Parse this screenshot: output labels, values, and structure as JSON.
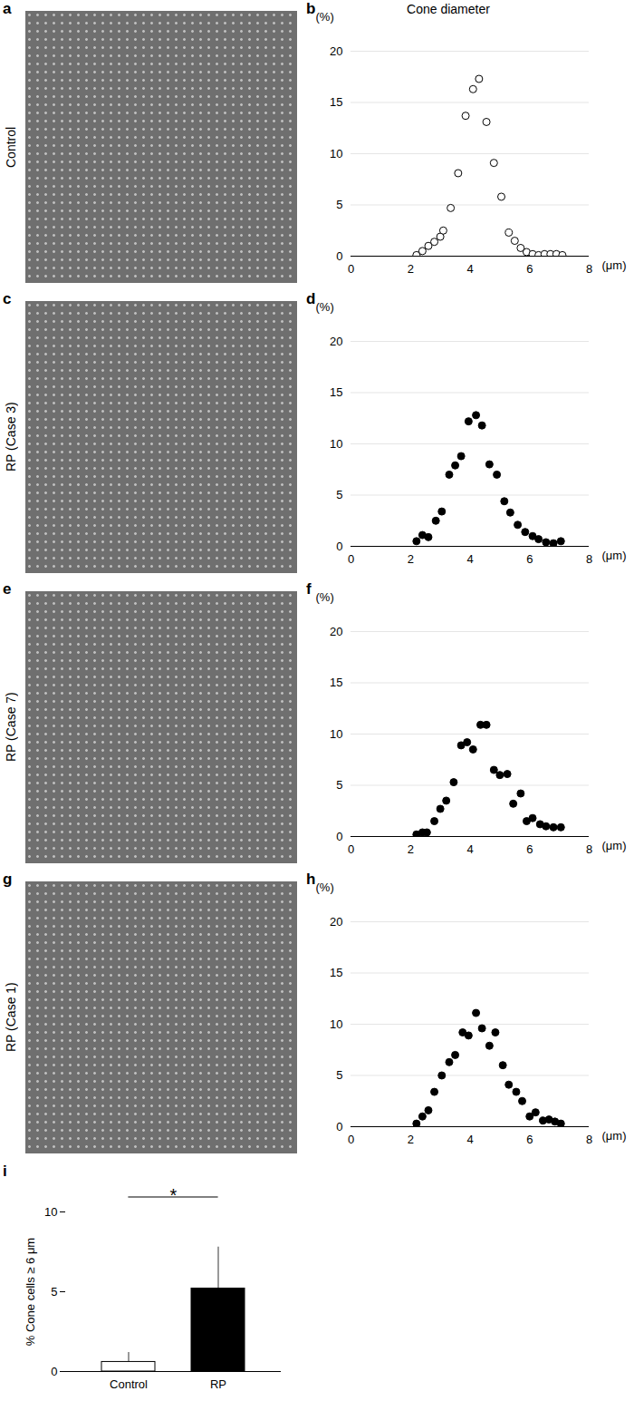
{
  "image_panels": [
    {
      "panel": "a",
      "label": "Control"
    },
    {
      "panel": "c",
      "label": "RP (Case 3)"
    },
    {
      "panel": "e",
      "label": "RP (Case 7)"
    },
    {
      "panel": "g",
      "label": "RP (Case 1)"
    }
  ],
  "chart_data": [
    {
      "type": "scatter",
      "panel": "b",
      "title": "Cone diameter",
      "x_label": "(μm)",
      "y_label": "(%)",
      "x": [
        2.2,
        2.4,
        2.6,
        2.8,
        3.0,
        3.1,
        3.35,
        3.6,
        3.85,
        4.1,
        4.3,
        4.55,
        4.8,
        5.05,
        5.3,
        5.5,
        5.7,
        5.9,
        6.1,
        6.3,
        6.5,
        6.7,
        6.9,
        7.1
      ],
      "values": [
        0.1,
        0.5,
        1.0,
        1.4,
        1.9,
        2.5,
        4.7,
        8.1,
        13.7,
        16.3,
        17.3,
        13.1,
        9.1,
        5.8,
        2.3,
        1.5,
        0.8,
        0.4,
        0.2,
        0.1,
        0.2,
        0.2,
        0.2,
        0.1
      ],
      "color": "#000000",
      "marker": "open",
      "xlim": [
        0,
        8
      ],
      "xticks": [
        0,
        2,
        4,
        6,
        8
      ],
      "ylim": [
        0,
        20
      ],
      "yticks": [
        0,
        5,
        10,
        15,
        20
      ],
      "grid": true
    },
    {
      "type": "scatter",
      "panel": "d",
      "x_label": "(μm)",
      "y_label": "(%)",
      "x": [
        2.2,
        2.4,
        2.6,
        2.85,
        3.05,
        3.3,
        3.5,
        3.7,
        3.95,
        4.2,
        4.4,
        4.65,
        4.9,
        5.15,
        5.35,
        5.6,
        5.85,
        6.1,
        6.3,
        6.55,
        6.8,
        7.05
      ],
      "values": [
        0.5,
        1.1,
        0.9,
        2.5,
        3.4,
        7.0,
        7.9,
        8.8,
        12.2,
        12.8,
        11.8,
        8.0,
        7.0,
        4.4,
        3.3,
        2.1,
        1.4,
        1.0,
        0.7,
        0.4,
        0.3,
        0.5
      ],
      "color": "#000000",
      "marker": "filled",
      "xlim": [
        0,
        8
      ],
      "xticks": [
        0,
        2,
        4,
        6,
        8
      ],
      "ylim": [
        0,
        20
      ],
      "yticks": [
        0,
        5,
        10,
        15,
        20
      ],
      "grid": true
    },
    {
      "type": "scatter",
      "panel": "f",
      "x_label": "(μm)",
      "y_label": "(%)",
      "x": [
        2.2,
        2.4,
        2.55,
        2.8,
        3.0,
        3.2,
        3.45,
        3.7,
        3.9,
        4.1,
        4.35,
        4.55,
        4.8,
        5.0,
        5.25,
        5.45,
        5.7,
        5.9,
        6.1,
        6.35,
        6.55,
        6.8,
        7.05
      ],
      "values": [
        0.2,
        0.4,
        0.4,
        1.5,
        2.7,
        3.5,
        5.3,
        8.9,
        9.2,
        8.5,
        10.9,
        10.9,
        6.5,
        6.0,
        6.1,
        3.2,
        4.2,
        1.5,
        1.8,
        1.2,
        1.0,
        0.9,
        0.9
      ],
      "color": "#000000",
      "marker": "filled",
      "xlim": [
        0,
        8
      ],
      "xticks": [
        0,
        2,
        4,
        6,
        8
      ],
      "ylim": [
        0,
        20
      ],
      "yticks": [
        0,
        5,
        10,
        15,
        20
      ],
      "grid": true
    },
    {
      "type": "scatter",
      "panel": "h",
      "x_label": "(μm)",
      "y_label": "(%)",
      "x": [
        2.2,
        2.4,
        2.6,
        2.8,
        3.05,
        3.3,
        3.5,
        3.75,
        3.95,
        4.2,
        4.4,
        4.65,
        4.85,
        5.1,
        5.3,
        5.55,
        5.75,
        6.0,
        6.2,
        6.45,
        6.65,
        6.85,
        7.05
      ],
      "values": [
        0.3,
        1.0,
        1.6,
        3.4,
        5.0,
        6.3,
        7.0,
        9.2,
        8.9,
        11.1,
        9.6,
        7.9,
        9.2,
        6.0,
        4.1,
        3.4,
        2.5,
        1.0,
        1.4,
        0.6,
        0.7,
        0.5,
        0.3
      ],
      "color": "#000000",
      "marker": "filled",
      "xlim": [
        0,
        8
      ],
      "xticks": [
        0,
        2,
        4,
        6,
        8
      ],
      "ylim": [
        0,
        20
      ],
      "yticks": [
        0,
        5,
        10,
        15,
        20
      ],
      "grid": true
    },
    {
      "type": "bar",
      "panel": "i",
      "y_label": "% Cone cells ≥ 6 μm",
      "categories": [
        "Control",
        "RP"
      ],
      "values": [
        0.6,
        5.2
      ],
      "errors": [
        0.6,
        2.6
      ],
      "colors": [
        "#ffffff",
        "#000000"
      ],
      "annotations": [
        "*"
      ],
      "ylim": [
        0,
        10
      ],
      "yticks": [
        0,
        5,
        10
      ]
    }
  ]
}
